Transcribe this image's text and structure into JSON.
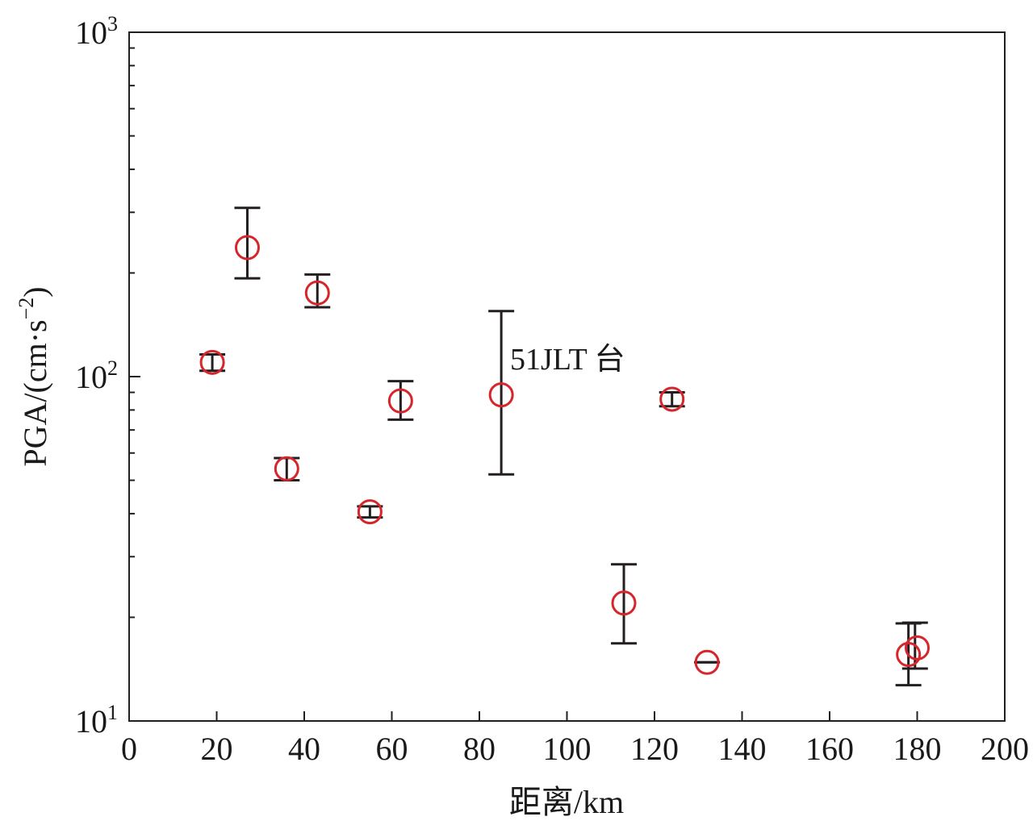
{
  "chart_data": {
    "type": "scatter",
    "title": "",
    "xlabel": "距离/km",
    "ylabel_main": "PGA/",
    "ylabel_unit": "(cm·s",
    "ylabel_exp": "−2",
    "ylabel_close": ")",
    "xlim": [
      0,
      200
    ],
    "ylim": [
      10,
      1000
    ],
    "yscale": "log",
    "grid": false,
    "x_ticks": [
      0,
      20,
      40,
      60,
      80,
      100,
      120,
      140,
      160,
      180,
      200
    ],
    "y_ticks": [
      {
        "value": 10,
        "base": "10",
        "exp": "1"
      },
      {
        "value": 100,
        "base": "10",
        "exp": "2"
      },
      {
        "value": 1000,
        "base": "10",
        "exp": "3"
      }
    ],
    "marker_color": "#d7262b",
    "errorbar_color": "#231f20",
    "points": [
      {
        "x": 19,
        "y": 110,
        "err_x": 19,
        "err_low": 104,
        "err_high": 116
      },
      {
        "x": 27,
        "y": 237,
        "err_x": 27,
        "err_low": 193,
        "err_high": 309
      },
      {
        "x": 36,
        "y": 54,
        "err_x": 36,
        "err_low": 50,
        "err_high": 58
      },
      {
        "x": 43,
        "y": 175,
        "err_x": 43,
        "err_low": 159,
        "err_high": 198
      },
      {
        "x": 55,
        "y": 40.5,
        "err_x": 55,
        "err_low": 39,
        "err_high": 42
      },
      {
        "x": 62,
        "y": 85,
        "err_x": 62,
        "err_low": 75,
        "err_high": 97
      },
      {
        "x": 85,
        "y": 88.5,
        "err_x": 85,
        "err_low": 52,
        "err_high": 155
      },
      {
        "x": 113,
        "y": 22,
        "err_x": 113,
        "err_low": 16.8,
        "err_high": 28.5
      },
      {
        "x": 124,
        "y": 86,
        "err_x": 124,
        "err_low": 82,
        "err_high": 90
      },
      {
        "x": 132,
        "y": 14.8,
        "err_x": 132,
        "err_low": 14.8,
        "err_high": 14.8
      },
      {
        "x": 178,
        "y": 15.6,
        "err_x": 178,
        "err_low": 12.7,
        "err_high": 19.2
      },
      {
        "x": 180,
        "y": 16.3,
        "err_x": 179.5,
        "err_low": 14.2,
        "err_high": 19.3
      }
    ],
    "annotations": [
      {
        "text": "51JLT 台",
        "x": 87,
        "y": 105
      }
    ]
  }
}
